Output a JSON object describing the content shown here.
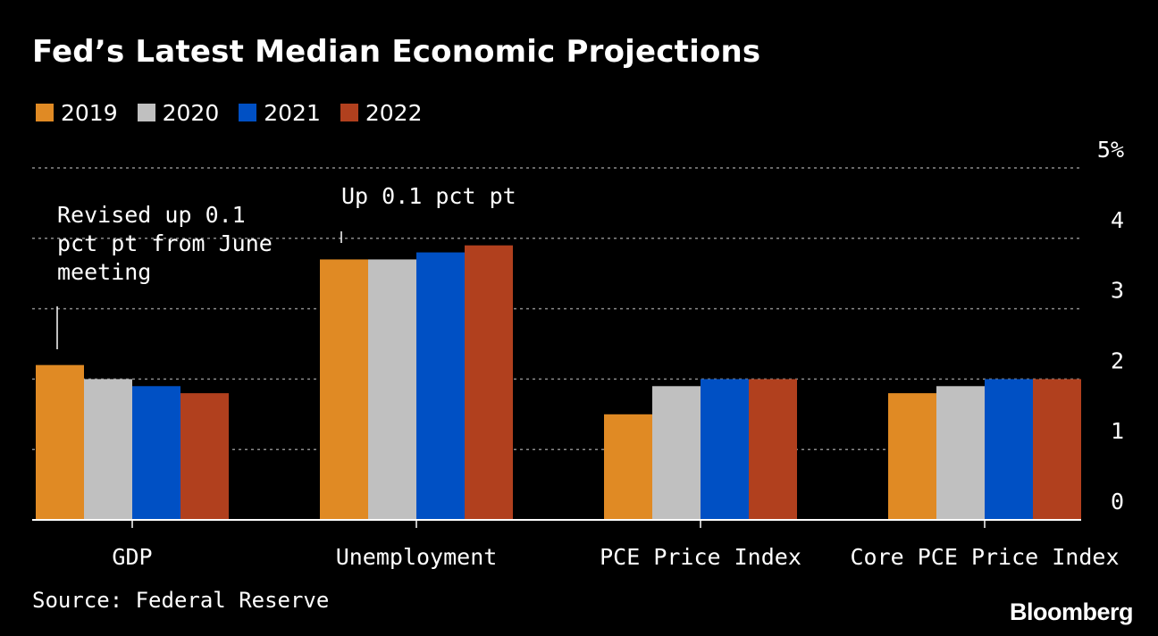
{
  "header": {
    "title": "Fed’s Latest Median Economic Projections"
  },
  "footer": {
    "source": "Source: Federal Reserve",
    "brand": "Bloomberg"
  },
  "chart_data": {
    "type": "bar",
    "title": "Fed’s Latest Median Economic Projections",
    "xlabel": "",
    "ylabel": "",
    "categories": [
      "GDP",
      "Unemployment",
      "PCE Price Index",
      "Core PCE Price Index"
    ],
    "series": [
      {
        "name": "2019",
        "color": "#E08A24",
        "values": [
          2.2,
          3.7,
          1.5,
          1.8
        ]
      },
      {
        "name": "2020",
        "color": "#C0C0C0",
        "values": [
          2.0,
          3.7,
          1.9,
          1.9
        ]
      },
      {
        "name": "2021",
        "color": "#0050C4",
        "values": [
          1.9,
          3.8,
          2.0,
          2.0
        ]
      },
      {
        "name": "2022",
        "color": "#B1401E",
        "values": [
          1.8,
          3.9,
          2.0,
          2.0
        ]
      }
    ],
    "ylim": [
      0,
      5
    ],
    "yticks": [
      0,
      1,
      2,
      3,
      4,
      5
    ],
    "ytick_labels": [
      "0",
      "1",
      "2",
      "3",
      "4",
      "5%"
    ],
    "yaxis_position": "right",
    "grid": "horizontal-dashed",
    "legend_position": "top-left",
    "annotations": [
      {
        "category": "GDP",
        "series": "2019",
        "lines": [
          "Revised up 0.1",
          "pct pt from June",
          "meeting"
        ]
      },
      {
        "category": "Unemployment",
        "series": "2019",
        "lines": [
          "Up 0.1 pct pt"
        ]
      }
    ]
  }
}
